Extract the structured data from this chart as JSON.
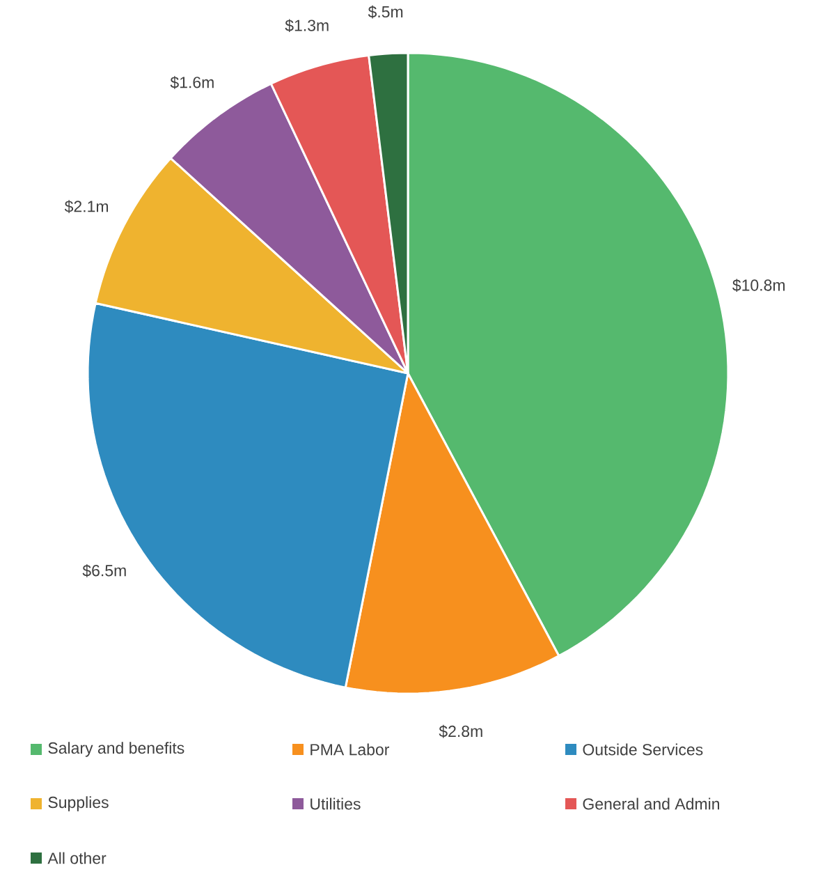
{
  "chart_data": {
    "type": "pie",
    "categories": [
      "Salary and benefits",
      "PMA Labor",
      "Outside Services",
      "Supplies",
      "Utilities",
      "General and Admin",
      "All other"
    ],
    "values": [
      10.8,
      2.8,
      6.5,
      2.1,
      1.6,
      1.3,
      0.5
    ],
    "value_labels": [
      "$10.8m",
      "$2.8m",
      "$6.5m",
      "$2.1m",
      "$1.6m",
      "$1.3m",
      "$.5m"
    ],
    "colors": [
      "#55b96e",
      "#f7901e",
      "#2e8bbf",
      "#efb32f",
      "#8e5a9b",
      "#e45756",
      "#2e7040"
    ],
    "legend": "bottom"
  }
}
